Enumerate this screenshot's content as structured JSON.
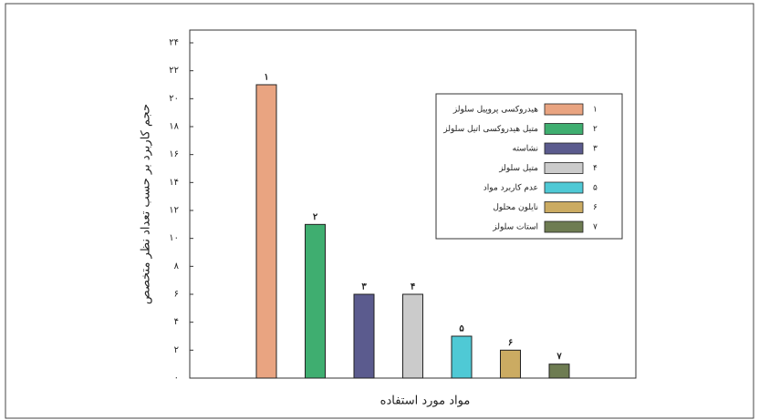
{
  "chart_data": {
    "type": "bar",
    "y_label": "حجم کاربرد بر حسب تعداد نظر متخصص",
    "x_label": "مواد مورد استفاده",
    "categories": [
      "۱",
      "۲",
      "۳",
      "۴",
      "۵",
      "۶",
      "۷"
    ],
    "values": [
      21,
      11,
      6,
      6,
      3,
      2,
      1
    ],
    "colors": [
      "#e9a481",
      "#3fae70",
      "#5b5b8e",
      "#cbcbcb",
      "#4fc9d5",
      "#cbab62",
      "#6e7c52"
    ],
    "legend": [
      {
        "number": "۱",
        "name": "هیدروکسی پروپیل سلولز"
      },
      {
        "number": "۲",
        "name": "متیل هیدروکسی اتیل سلولز"
      },
      {
        "number": "۳",
        "name": "نشاسته"
      },
      {
        "number": "۴",
        "name": "متیل سلولز"
      },
      {
        "number": "۵",
        "name": "عدم کاربرد مواد"
      },
      {
        "number": "۶",
        "name": "نایلون محلول"
      },
      {
        "number": "۷",
        "name": "استات سلولز"
      }
    ],
    "ylim": [
      0,
      24
    ],
    "yticks": [
      {
        "value": 0,
        "label": "۰"
      },
      {
        "value": 2,
        "label": "۲"
      },
      {
        "value": 4,
        "label": "۴"
      },
      {
        "value": 6,
        "label": "۶"
      },
      {
        "value": 8,
        "label": "۸"
      },
      {
        "value": 10,
        "label": "۱۰"
      },
      {
        "value": 12,
        "label": "۱۲"
      },
      {
        "value": 14,
        "label": "۱۴"
      },
      {
        "value": 16,
        "label": "۱۶"
      },
      {
        "value": 18,
        "label": "۱۸"
      },
      {
        "value": 20,
        "label": "۲۰"
      },
      {
        "value": 22,
        "label": "۲۲"
      },
      {
        "value": 24,
        "label": "۲۴"
      }
    ]
  }
}
